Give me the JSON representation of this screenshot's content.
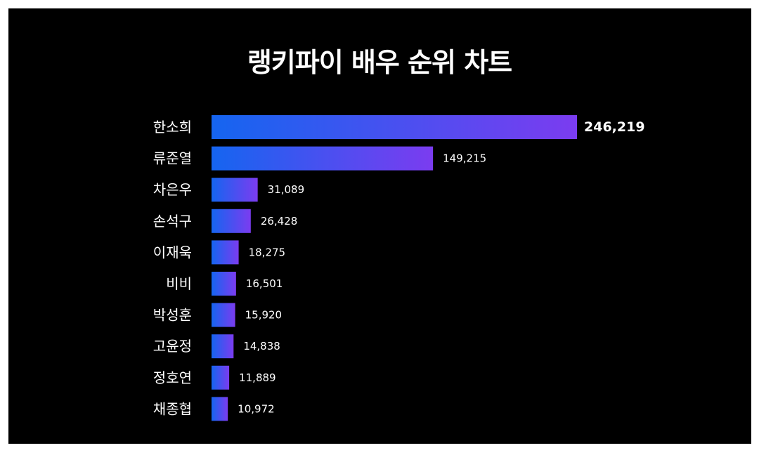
{
  "chart_data": {
    "type": "bar",
    "orientation": "horizontal",
    "title": "랭키파이 배우 순위 차트",
    "categories": [
      "한소희",
      "류준열",
      "차은우",
      "손석구",
      "이재욱",
      "비비",
      "박성훈",
      "고윤정",
      "정호연",
      "채종협"
    ],
    "values": [
      246219,
      149215,
      31089,
      26428,
      18275,
      16501,
      15920,
      14838,
      11889,
      10972
    ],
    "value_labels": [
      "246,219",
      "149,215",
      "31,089",
      "26,428",
      "18,275",
      "16,501",
      "15,920",
      "14,838",
      "11,889",
      "10,972"
    ],
    "xlim": [
      0,
      246219
    ],
    "grid": false,
    "legend": "none",
    "colors": {
      "background": "#000000",
      "bar_start": "#1565f0",
      "bar_end": "#7b3cf0",
      "text": "#ffffff"
    }
  }
}
